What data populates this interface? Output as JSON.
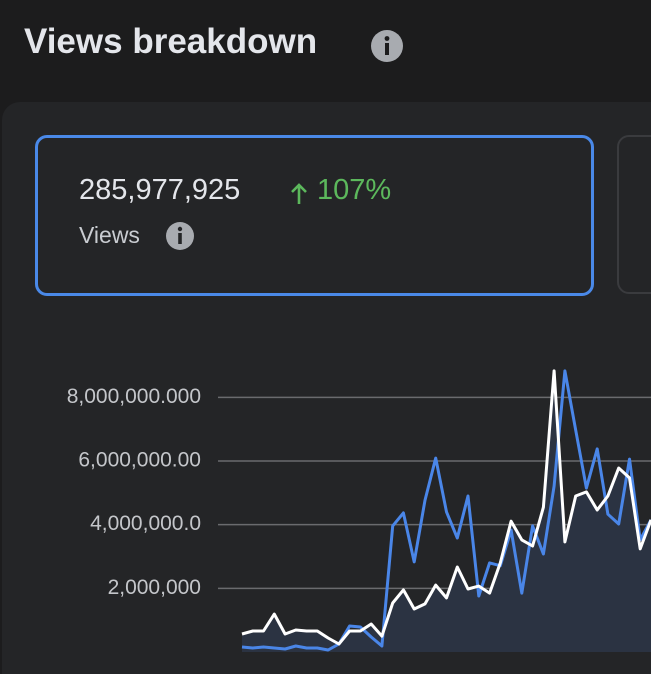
{
  "header": {
    "title": "Views breakdown"
  },
  "metric": {
    "value": "285,977,925",
    "change": "107%",
    "label": "Views"
  },
  "chart_data": {
    "type": "line",
    "ylim": [
      0,
      9000000
    ],
    "yticks": [
      {
        "value": 2000000,
        "label": "2,000,000"
      },
      {
        "value": 4000000,
        "label": "4,000,000.0"
      },
      {
        "value": 6000000,
        "label": "6,000,000.00"
      },
      {
        "value": 8000000,
        "label": "8,000,000.000"
      }
    ],
    "grid": true,
    "series": [
      {
        "color": "#4a86e8",
        "values": [
          157000,
          126000,
          157000,
          126000,
          94000,
          188000,
          126000,
          126000,
          63000,
          251000,
          817000,
          785000,
          471000,
          188000,
          3960000,
          4370000,
          2830000,
          4770000,
          6090000,
          4400000,
          3580000,
          4900000,
          1760000,
          2800000,
          2710000,
          3830000,
          1850000,
          3960000,
          3080000,
          5210000,
          8830000,
          6970000,
          5150000,
          6380000,
          4330000,
          4020000,
          6060000,
          3520000,
          4150000
        ]
      },
      {
        "color": "#ffffff",
        "area_color": "#2b3342",
        "values": [
          565000,
          660000,
          660000,
          1190000,
          565000,
          690000,
          660000,
          660000,
          440000,
          250000,
          660000,
          660000,
          880000,
          500000,
          1540000,
          1950000,
          1350000,
          1510000,
          2100000,
          1700000,
          2670000,
          1980000,
          2070000,
          1850000,
          2800000,
          4110000,
          3520000,
          3330000,
          4550000,
          8830000,
          3460000,
          4900000,
          5030000,
          4460000,
          4900000,
          5780000,
          5470000,
          3240000,
          4150000
        ]
      }
    ]
  }
}
